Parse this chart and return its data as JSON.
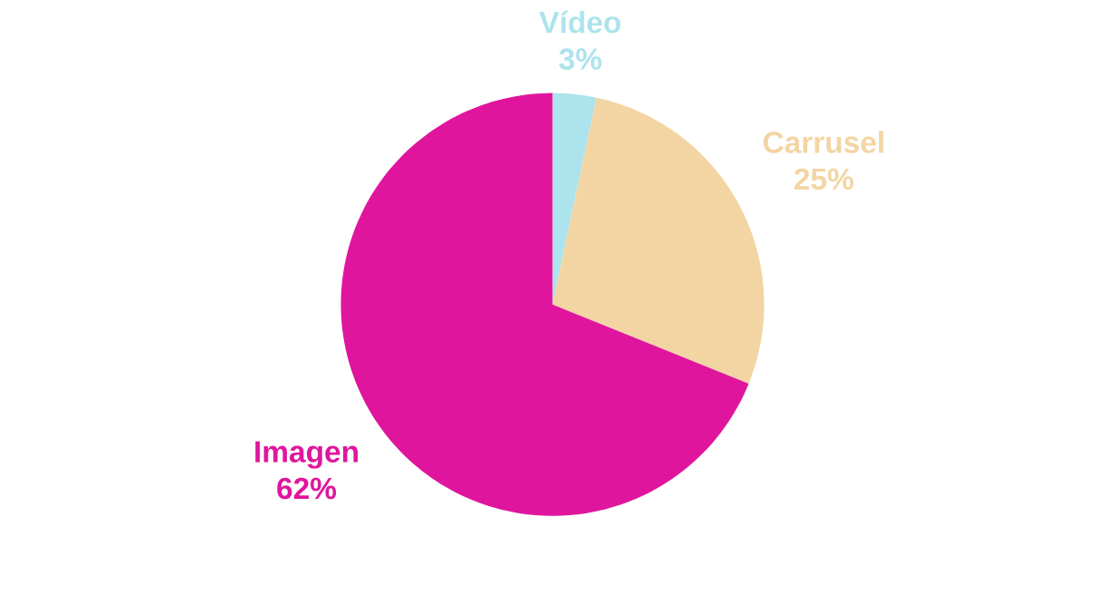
{
  "chart_data": {
    "type": "pie",
    "categories": [
      "Vídeo",
      "Carrusel",
      "Imagen"
    ],
    "values": [
      3,
      25,
      62
    ],
    "colors": [
      "#ade3ec",
      "#f3d5a4",
      "#df169d"
    ],
    "value_labels": [
      "3%",
      "25%",
      "62%"
    ]
  }
}
